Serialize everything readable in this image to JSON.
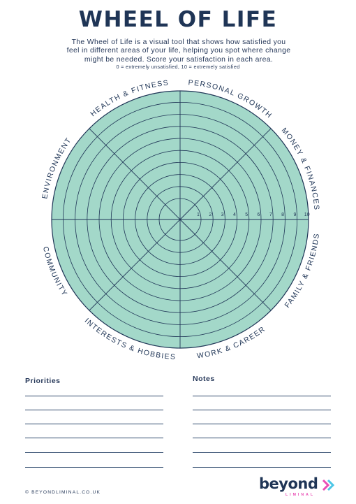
{
  "header": {
    "title": "WHEEL OF LIFE",
    "intro": "The Wheel of Life is a visual tool that shows how satisfied you feel in different areas of your life, helping you spot where change might be needed. Score your satisfaction in each area.",
    "scale_note": "0 = extremely unsatisfied, 10 = extremely satisfied"
  },
  "wheel": {
    "fill_color": "#a3d8c9",
    "line_color": "#1f3556",
    "scale_numbers": [
      "1",
      "2",
      "3",
      "4",
      "5",
      "6",
      "7",
      "8",
      "9",
      "10"
    ],
    "segments": [
      "PERSONAL GROWTH",
      "MONEY & FINANCES",
      "FAMILY & FRIENDS",
      "WORK & CAREER",
      "INTERESTS & HOBBIES",
      "COMMUNITY",
      "ENVIRONMENT",
      "HEALTH & FITNESS"
    ]
  },
  "priorities": {
    "title": "Priorities"
  },
  "notes": {
    "title": "Notes"
  },
  "footer": {
    "copyright": "© BEYONDLIMINAL.CO.UK"
  },
  "logo": {
    "word": "beyond",
    "sub": "LIMINAL",
    "accent_color": "#e94db4",
    "arrow_color": "#4cc6e6"
  }
}
